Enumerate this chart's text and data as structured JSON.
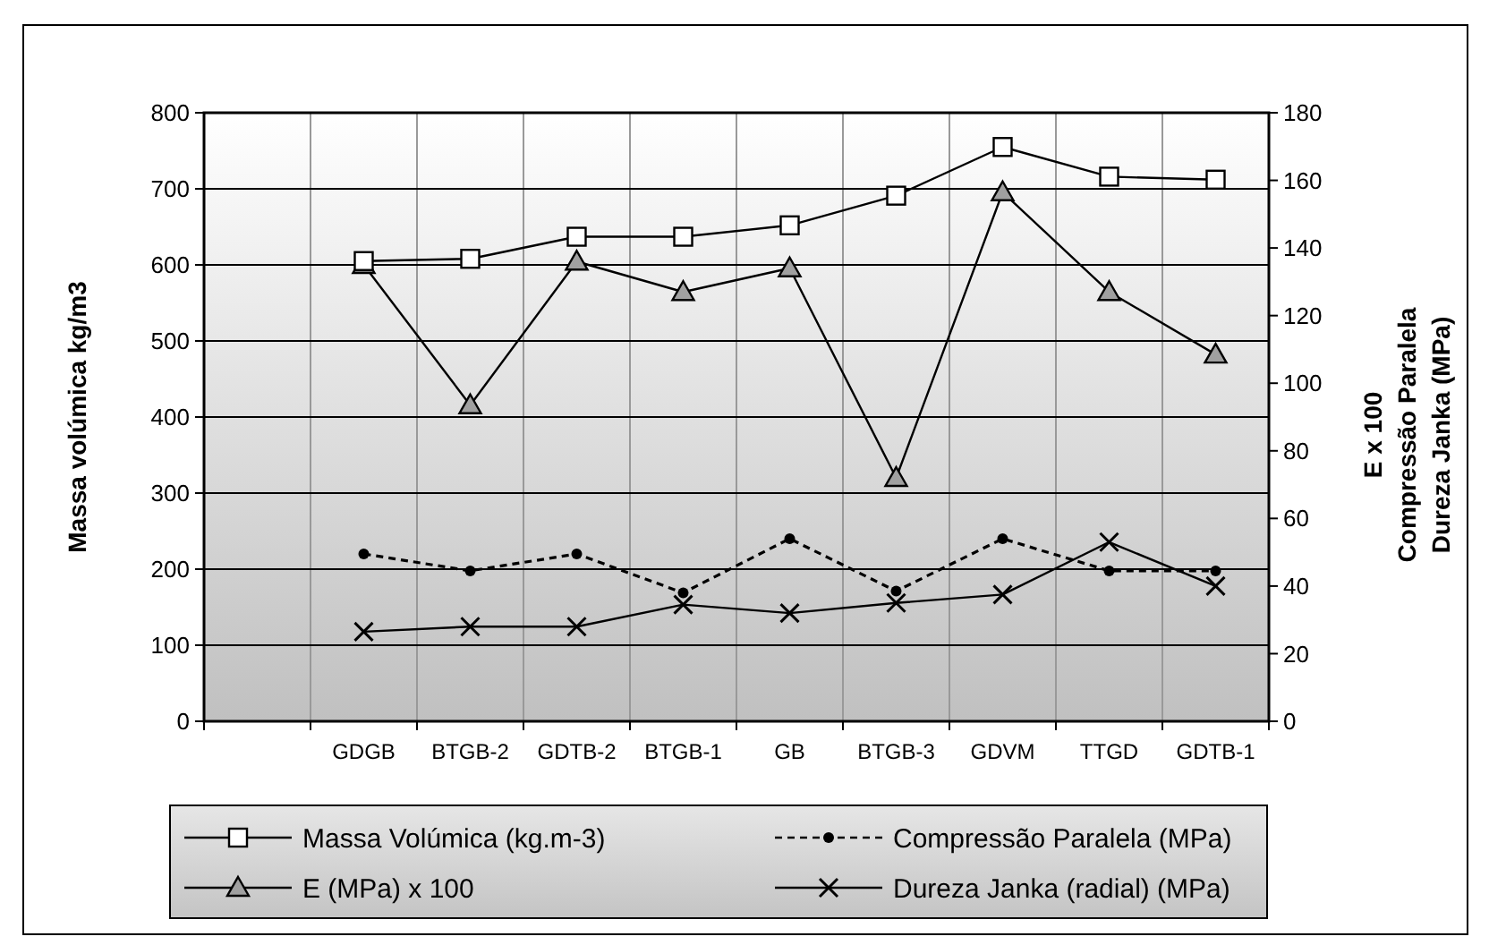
{
  "chart_data": {
    "type": "line",
    "ylabel": "Massa volúmica kg/m3",
    "y2label": "E x 100\nCompressão Paralela\nDureza Janka (MPa)",
    "categories": [
      null,
      "GDGB",
      "BTGB-2",
      "GDTB-2",
      "BTGB-1",
      "GB",
      "BTGB-3",
      "GDVM",
      "TTGD",
      "GDTB-1"
    ],
    "series": [
      {
        "name": "Massa Volúmica (kg.m-3)",
        "color": "#000000",
        "marker": "square",
        "line_style": "solid",
        "values": [
          null,
          605,
          608,
          637,
          637,
          652,
          691,
          755,
          716,
          712
        ]
      },
      {
        "name": "Compressão Paralela  (MPa)",
        "color": "#000000",
        "marker": "circle",
        "line_style": "dashed",
        "axis": "y2",
        "values": [
          null,
          49.5,
          44.5,
          49.5,
          38,
          54,
          38.5,
          54,
          44.5,
          44.5
        ]
      },
      {
        "name": "E (MPa) x 100",
        "color": "#000000",
        "marker": "triangle",
        "line_style": "solid",
        "axis": "y2",
        "values": [
          null,
          135,
          93.5,
          136,
          127,
          134,
          72,
          156.5,
          127,
          108.5
        ]
      },
      {
        "name": "Dureza Janka (radial) (MPa)",
        "color": "#000000",
        "marker": "cross",
        "line_style": "solid",
        "axis": "y2",
        "values": [
          null,
          26.5,
          28,
          28,
          34.5,
          32,
          35,
          37.5,
          53,
          40
        ]
      }
    ],
    "ylim": [
      0,
      800
    ],
    "yticks": [
      0,
      100,
      200,
      300,
      400,
      500,
      600,
      700,
      800
    ],
    "y2lim": [
      0,
      180
    ],
    "y2ticks": [
      0,
      20,
      40,
      60,
      80,
      100,
      120,
      140,
      160,
      180
    ],
    "grid": true,
    "legend": "bottom"
  }
}
